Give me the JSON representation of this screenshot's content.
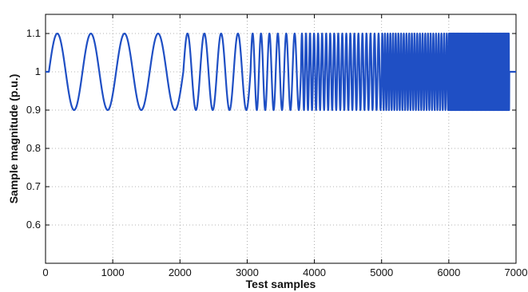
{
  "chart_data": {
    "type": "line",
    "title": "",
    "xlabel": "Test samples",
    "ylabel": "Sample magnitude (p.u.)",
    "xlim": [
      0,
      7000
    ],
    "ylim": [
      0.5,
      1.15
    ],
    "xticks": [
      0,
      1000,
      2000,
      3000,
      4000,
      5000,
      6000,
      7000
    ],
    "xtick_labels": [
      "0",
      "1000",
      "2000",
      "3000",
      "4000",
      "5000",
      "6000",
      "7000"
    ],
    "yticks": [
      0.6,
      0.7,
      0.8,
      0.9,
      1.0,
      1.1
    ],
    "ytick_labels": [
      "0.6",
      "0.7",
      "0.8",
      "0.9",
      "1",
      "1.1"
    ],
    "grid": "dotted",
    "line_color": "#1f4fc4",
    "series": [
      {
        "baseline": 1.0,
        "amplitude": 0.1,
        "signal_start": 50,
        "signal_end": 6900,
        "segments": [
          {
            "x_start": 50,
            "x_end": 2050,
            "cycles": 4
          },
          {
            "x_start": 2050,
            "x_end": 3050,
            "cycles": 4
          },
          {
            "x_start": 3050,
            "x_end": 3800,
            "cycles": 6
          },
          {
            "x_start": 3800,
            "x_end": 5000,
            "cycles": 20
          },
          {
            "x_start": 5000,
            "x_end": 6000,
            "cycles": 25
          },
          {
            "x_start": 6000,
            "x_end": 6900,
            "cycles": 90
          }
        ]
      }
    ]
  }
}
